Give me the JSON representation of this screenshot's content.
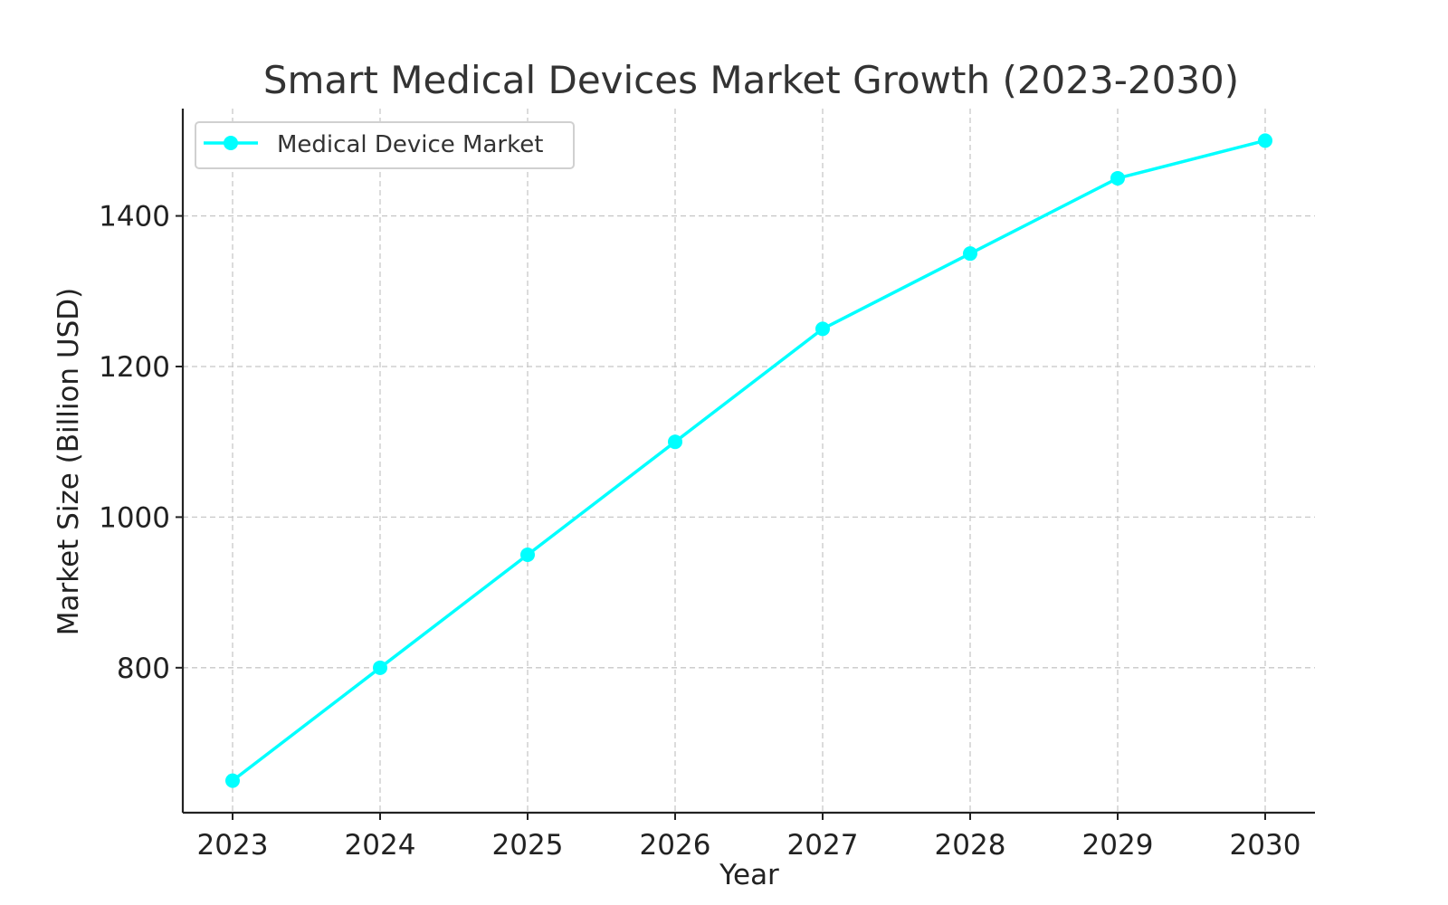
{
  "chart_data": {
    "type": "line",
    "title": "Smart Medical Devices Market Growth (2023-2030)",
    "xlabel": "Year",
    "ylabel": "Market Size (Billion USD)",
    "x": [
      "2023",
      "2024",
      "2025",
      "2026",
      "2027",
      "2028",
      "2029",
      "2030"
    ],
    "series": [
      {
        "name": "Medical Device Market",
        "values": [
          650,
          800,
          950,
          1100,
          1250,
          1350,
          1450,
          1500
        ],
        "color": "#00ffff",
        "marker": "circle"
      }
    ],
    "yticks": [
      "800",
      "1000",
      "1200",
      "1400"
    ],
    "ylim": [
      607.5,
      1542.5
    ],
    "grid": true,
    "legend_position": "top-left"
  }
}
